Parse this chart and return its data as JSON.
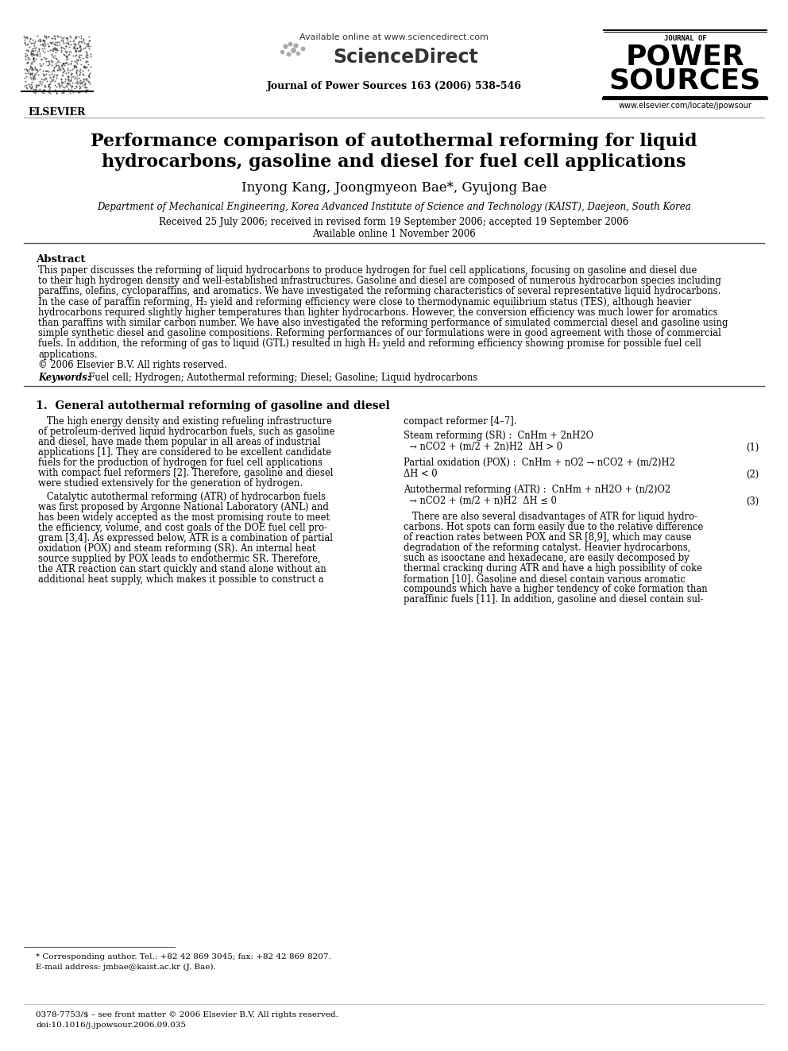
{
  "bg_color": "#ffffff",
  "header_available_online": "Available online at www.sciencedirect.com",
  "header_sciencedirect": "ScienceDirect",
  "header_journal_line": "Journal of Power Sources 163 (2006) 538–546",
  "header_journal_of": "JOURNAL OF",
  "header_power": "POWER",
  "header_sources": "SOURCES",
  "header_website": "www.elsevier.com/locate/jpowsour",
  "elsevier_text": "ELSEVIER",
  "title_line1": "Performance comparison of autothermal reforming for liquid",
  "title_line2": "hydrocarbons, gasoline and diesel for fuel cell applications",
  "authors": "Inyong Kang, Joongmyeon Bae*, Gyujong Bae",
  "affiliation": "Department of Mechanical Engineering, Korea Advanced Institute of Science and Technology (KAIST), Daejeon, South Korea",
  "received": "Received 25 July 2006; received in revised form 19 September 2006; accepted 19 September 2006",
  "available_online": "Available online 1 November 2006",
  "abstract_title": "Abstract",
  "abstract_body": [
    "This paper discusses the reforming of liquid hydrocarbons to produce hydrogen for fuel cell applications, focusing on gasoline and diesel due",
    "to their high hydrogen density and well-established infrastructures. Gasoline and diesel are composed of numerous hydrocarbon species including",
    "paraffins, olefins, cycloparaffins, and aromatics. We have investigated the reforming characteristics of several representative liquid hydrocarbons.",
    "In the case of paraffin reforming, H₂ yield and reforming efficiency were close to thermodynamic equilibrium status (TES), although heavier",
    "hydrocarbons required slightly higher temperatures than lighter hydrocarbons. However, the conversion efficiency was much lower for aromatics",
    "than paraffins with similar carbon number. We have also investigated the reforming performance of simulated commercial diesel and gasoline using",
    "simple synthetic diesel and gasoline compositions. Reforming performances of our formulations were in good agreement with those of commercial",
    "fuels. In addition, the reforming of gas to liquid (GTL) resulted in high H₂ yield and reforming efficiency showing promise for possible fuel cell",
    "applications.",
    "© 2006 Elsevier B.V. All rights reserved."
  ],
  "keywords_label": "Keywords:",
  "keywords_text": "  Fuel cell; Hydrogen; Autothermal reforming; Diesel; Gasoline; Liquid hydrocarbons",
  "section1_title": "1.  General autothermal reforming of gasoline and diesel",
  "col1_para1": [
    "   The high energy density and existing refueling infrastructure",
    "of petroleum-derived liquid hydrocarbon fuels, such as gasoline",
    "and diesel, have made them popular in all areas of industrial",
    "applications [1]. They are considered to be excellent candidate",
    "fuels for the production of hydrogen for fuel cell applications",
    "with compact fuel reformers [2]. Therefore, gasoline and diesel",
    "were studied extensively for the generation of hydrogen."
  ],
  "col1_para2": [
    "   Catalytic autothermal reforming (ATR) of hydrocarbon fuels",
    "was first proposed by Argonne National Laboratory (ANL) and",
    "has been widely accepted as the most promising route to meet",
    "the efficiency, volume, and cost goals of the DOE fuel cell pro-",
    "gram [3,4]. As expressed below, ATR is a combination of partial",
    "oxidation (POX) and steam reforming (SR). An internal heat",
    "source supplied by POX leads to endothermic SR. Therefore,",
    "the ATR reaction can start quickly and stand alone without an",
    "additional heat supply, which makes it possible to construct a"
  ],
  "col2_intro": "compact reformer [4–7].",
  "sr_label": "Steam reforming (SR) :  CnHm + 2nH2O",
  "sr_eq": "  → nCO2 + (m/2 + 2n)H2  ΔH > 0",
  "sr_num": "(1)",
  "pox_label": "Partial oxidation (POX) :  CnHm + nO2 → nCO2 + (m/2)H2",
  "pox_eq": "ΔH < 0",
  "pox_num": "(2)",
  "atr_label": "Autothermal reforming (ATR) :  CnHm + nH2O + (n/2)O2",
  "atr_eq": "  → nCO2 + (m/2 + n)H2  ΔH ≤ 0",
  "atr_num": "(3)",
  "col2_para": [
    "   There are also several disadvantages of ATR for liquid hydro-",
    "carbons. Hot spots can form easily due to the relative difference",
    "of reaction rates between POX and SR [8,9], which may cause",
    "degradation of the reforming catalyst. Heavier hydrocarbons,",
    "such as isooctane and hexadecane, are easily decomposed by",
    "thermal cracking during ATR and have a high possibility of coke",
    "formation [10]. Gasoline and diesel contain various aromatic",
    "compounds which have a higher tendency of coke formation than",
    "paraffinic fuels [11]. In addition, gasoline and diesel contain sul-"
  ],
  "footnote_line": "* Corresponding author. Tel.: +82 42 869 3045; fax: +82 42 869 8207.",
  "footnote_email": "E-mail address: jmbae@kaist.ac.kr (J. Bae).",
  "footer_issn": "0378-7753/$ – see front matter © 2006 Elsevier B.V. All rights reserved.",
  "footer_doi": "doi:10.1016/j.jpowsour.2006.09.035"
}
